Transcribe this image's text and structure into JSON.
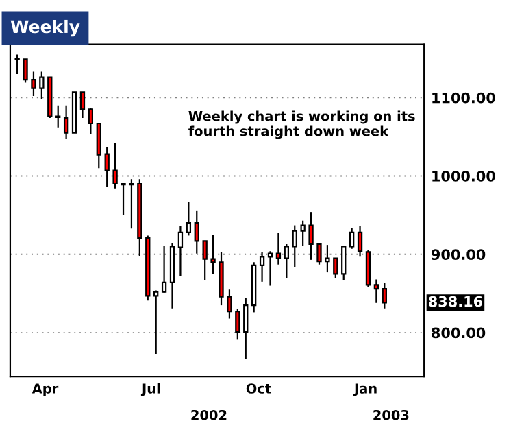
{
  "chart_data": {
    "type": "candlestick",
    "title": "Weekly",
    "x": [
      "2002-03-08",
      "2002-03-15",
      "2002-03-22",
      "2002-03-29",
      "2002-04-05",
      "2002-04-12",
      "2002-04-19",
      "2002-04-26",
      "2002-05-03",
      "2002-05-10",
      "2002-05-17",
      "2002-05-24",
      "2002-05-31",
      "2002-06-07",
      "2002-06-14",
      "2002-06-21",
      "2002-06-28",
      "2002-07-05",
      "2002-07-12",
      "2002-07-19",
      "2002-07-26",
      "2002-08-02",
      "2002-08-09",
      "2002-08-16",
      "2002-08-23",
      "2002-08-30",
      "2002-09-06",
      "2002-09-13",
      "2002-09-20",
      "2002-09-27",
      "2002-10-04",
      "2002-10-11",
      "2002-10-18",
      "2002-10-25",
      "2002-11-01",
      "2002-11-08",
      "2002-11-15",
      "2002-11-22",
      "2002-11-29",
      "2002-12-06",
      "2002-12-13",
      "2002-12-20",
      "2002-12-27",
      "2003-01-03",
      "2003-01-10",
      "2003-01-17"
    ],
    "ohlc": [
      [
        1149,
        1155,
        1130,
        1149
      ],
      [
        1149,
        1149,
        1119,
        1123
      ],
      [
        1123,
        1133,
        1102,
        1112
      ],
      [
        1112,
        1133,
        1098,
        1126
      ],
      [
        1126,
        1126,
        1074,
        1076
      ],
      [
        1076,
        1090,
        1062,
        1075
      ],
      [
        1074,
        1090,
        1047,
        1055
      ],
      [
        1055,
        1107,
        1055,
        1107
      ],
      [
        1107,
        1107,
        1074,
        1085
      ],
      [
        1085,
        1087,
        1053,
        1067
      ],
      [
        1067,
        1067,
        1010,
        1027
      ],
      [
        1028,
        1037,
        986,
        1007
      ],
      [
        1007,
        1042,
        984,
        990
      ],
      [
        990,
        990,
        950,
        989
      ],
      [
        989,
        996,
        933,
        990
      ],
      [
        990,
        996,
        898,
        921
      ],
      [
        921,
        924,
        841,
        847
      ],
      [
        847,
        854,
        773,
        852
      ],
      [
        852,
        911,
        851,
        864
      ],
      [
        864,
        914,
        831,
        910
      ],
      [
        909,
        936,
        872,
        928
      ],
      [
        928,
        967,
        924,
        940
      ],
      [
        940,
        956,
        901,
        917
      ],
      [
        917,
        917,
        867,
        894
      ],
      [
        894,
        925,
        875,
        890
      ],
      [
        890,
        903,
        835,
        846
      ],
      [
        846,
        855,
        818,
        827
      ],
      [
        827,
        830,
        791,
        801
      ],
      [
        801,
        844,
        766,
        835
      ],
      [
        835,
        890,
        826,
        886
      ],
      [
        886,
        903,
        865,
        897
      ],
      [
        897,
        904,
        860,
        901
      ],
      [
        901,
        927,
        887,
        895
      ],
      [
        895,
        913,
        870,
        910
      ],
      [
        910,
        937,
        884,
        930
      ],
      [
        930,
        943,
        911,
        937
      ],
      [
        937,
        954,
        893,
        913
      ],
      [
        913,
        913,
        887,
        891
      ],
      [
        891,
        912,
        877,
        895
      ],
      [
        895,
        895,
        870,
        875
      ],
      [
        875,
        910,
        867,
        910
      ],
      [
        910,
        934,
        907,
        928
      ],
      [
        928,
        936,
        897,
        904
      ],
      [
        903,
        906,
        858,
        861
      ],
      [
        861,
        868,
        838,
        856
      ],
      [
        856,
        864,
        831,
        838.16
      ]
    ],
    "colors": [
      "#ffffff",
      "#ff0000",
      "#ff0000",
      "#ffffff",
      "#ff0000",
      "#ff0000",
      "#ff0000",
      "#ffffff",
      "#ff0000",
      "#ff0000",
      "#ff0000",
      "#ff0000",
      "#ff0000",
      "#ff0000",
      "#ffffff",
      "#ff0000",
      "#ff0000",
      "#ffffff",
      "#ffffff",
      "#ffffff",
      "#ffffff",
      "#ffffff",
      "#ff0000",
      "#ff0000",
      "#ff0000",
      "#ff0000",
      "#ff0000",
      "#ff0000",
      "#ffffff",
      "#ffffff",
      "#ffffff",
      "#ffffff",
      "#ff0000",
      "#ffffff",
      "#ffffff",
      "#ffffff",
      "#ff0000",
      "#ff0000",
      "#ffffff",
      "#ff0000",
      "#ffffff",
      "#ffffff",
      "#ff0000",
      "#ff0000",
      "#ff0000",
      "#ff0000"
    ],
    "xlim": [
      "2002-03-02",
      "2003-02-20"
    ],
    "xticks": [
      {
        "value": "2002-04-01",
        "label": "Apr"
      },
      {
        "value": "2002-07-01",
        "label": "Jul"
      },
      {
        "value": "2002-10-01",
        "label": "Oct"
      },
      {
        "value": "2003-01-01",
        "label": "Jan"
      }
    ],
    "ylim": [
      744,
      1168
    ],
    "yticks": [
      {
        "value": 800,
        "label": "800.00"
      },
      {
        "value": 900,
        "label": "900.00"
      },
      {
        "value": 1000,
        "label": "1000.00"
      },
      {
        "value": 1100,
        "label": "1100.00"
      }
    ],
    "grid": "y",
    "annotations": [
      "Weekly chart is working on its\nfourth straight down week",
      "838.16",
      "2002",
      "2003"
    ]
  }
}
